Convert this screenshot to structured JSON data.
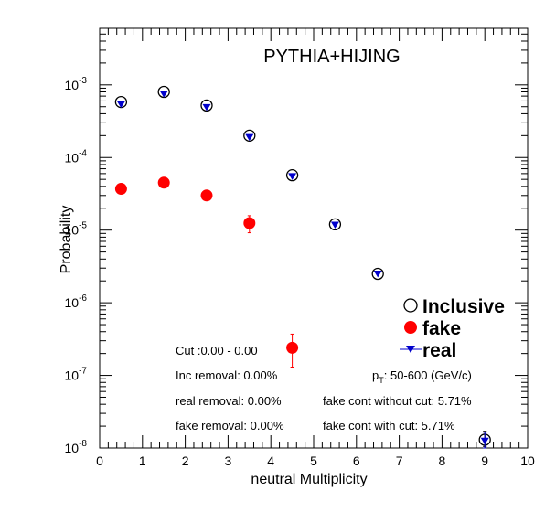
{
  "chart_data": {
    "type": "scatter",
    "title": "PYTHIA+HIJING",
    "xlabel": "neutral Multiplicity",
    "ylabel": "Probability",
    "xlim": [
      0,
      10
    ],
    "ylim": [
      1e-08,
      0.006
    ],
    "yscale": "log",
    "x_ticks": [
      "0",
      "1",
      "2",
      "3",
      "4",
      "5",
      "6",
      "7",
      "8",
      "9",
      "10"
    ],
    "y_ticks": [
      {
        "base": "10",
        "exp": "-8",
        "value": 1e-08
      },
      {
        "base": "10",
        "exp": "-7",
        "value": 1e-07
      },
      {
        "base": "10",
        "exp": "-6",
        "value": 1e-06
      },
      {
        "base": "10",
        "exp": "-5",
        "value": 1e-05
      },
      {
        "base": "10",
        "exp": "-4",
        "value": 0.0001
      },
      {
        "base": "10",
        "exp": "-3",
        "value": 0.001
      }
    ],
    "grid": false,
    "legend_position": "right",
    "series": [
      {
        "name": "Inclusive",
        "marker": "open-circle",
        "color": "#000000",
        "points": [
          {
            "x": 0.5,
            "y": 0.00058
          },
          {
            "x": 1.5,
            "y": 0.0008
          },
          {
            "x": 2.5,
            "y": 0.00052
          },
          {
            "x": 3.5,
            "y": 0.0002
          },
          {
            "x": 4.5,
            "y": 5.7e-05
          },
          {
            "x": 5.5,
            "y": 1.2e-05
          },
          {
            "x": 6.5,
            "y": 2.5e-06
          },
          {
            "x": 9.0,
            "y": 1.3e-08,
            "err_lo": 2.5e-09,
            "err_hi": 4e-09
          }
        ]
      },
      {
        "name": "fake",
        "marker": "filled-circle",
        "color": "#ff0000",
        "points": [
          {
            "x": 0.5,
            "y": 3.7e-05
          },
          {
            "x": 1.5,
            "y": 4.5e-05
          },
          {
            "x": 2.5,
            "y": 3e-05
          },
          {
            "x": 3.5,
            "y": 1.25e-05,
            "err_lo": 3.3e-06,
            "err_hi": 3.3e-06
          },
          {
            "x": 4.5,
            "y": 2.4e-07,
            "err_lo": 1.1e-07,
            "err_hi": 1.3e-07
          }
        ]
      },
      {
        "name": "real",
        "marker": "filled-triangle-down",
        "color": "#0000cc",
        "points": [
          {
            "x": 0.5,
            "y": 0.00054
          },
          {
            "x": 1.5,
            "y": 0.00075
          },
          {
            "x": 2.5,
            "y": 0.00049
          },
          {
            "x": 3.5,
            "y": 0.00019
          },
          {
            "x": 4.5,
            "y": 5.5e-05
          },
          {
            "x": 5.5,
            "y": 1.18e-05
          },
          {
            "x": 6.5,
            "y": 2.5e-06
          },
          {
            "x": 9.0,
            "y": 1.25e-08,
            "err_lo": 2.5e-09,
            "err_hi": 4e-09
          }
        ]
      }
    ],
    "annotations": {
      "cut": "Cut :0.00 - 0.00",
      "inc_removal": "Inc removal: 0.00%",
      "real_removal": "real removal: 0.00%",
      "fake_removal": "fake removal: 0.00%",
      "pt_prefix": "p",
      "pt_sub": "T",
      "pt_suffix": ": 50-600 (GeV/c)",
      "fake_cont_without": "fake cont without cut: 5.71%",
      "fake_cont_with": "fake cont with cut: 5.71%"
    }
  }
}
